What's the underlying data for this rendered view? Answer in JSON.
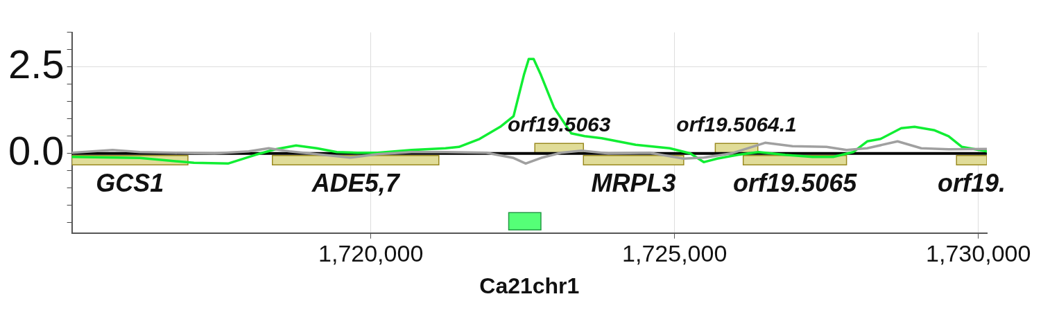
{
  "chart_data": {
    "type": "line",
    "xlabel": "Ca21chr1",
    "xlim": [
      1715080,
      1730140
    ],
    "xticks": [
      {
        "value": 1720000,
        "label": "1,720,000"
      },
      {
        "value": 1725000,
        "label": "1,725,000"
      },
      {
        "value": 1730000,
        "label": "1,730,000"
      }
    ],
    "ylim": [
      -2.3,
      3.5
    ],
    "yticks": [
      {
        "value": -2.0,
        "label": null
      },
      {
        "value": -1.5,
        "label": null
      },
      {
        "value": -1.0,
        "label": null
      },
      {
        "value": -0.5,
        "label": null
      },
      {
        "value": 0,
        "label": "0.0"
      },
      {
        "value": 0.5,
        "label": null
      },
      {
        "value": 1.0,
        "label": null
      },
      {
        "value": 1.5,
        "label": null
      },
      {
        "value": 2.0,
        "label": null
      },
      2.5,
      {
        "value": 3.0,
        "label": null
      },
      {
        "value": 3.5,
        "label": null
      }
    ],
    "grid": true,
    "legend": false,
    "marker": "none",
    "line_style": "solid",
    "series": [
      {
        "color": "#a0a0a0",
        "x": [
          1715080,
          1715750,
          1716200,
          1716760,
          1717430,
          1717990,
          1718320,
          1718660,
          1719220,
          1719660,
          1720110,
          1720670,
          1721230,
          1721900,
          1722350,
          1722550,
          1722800,
          1723130,
          1723470,
          1723910,
          1724590,
          1725150,
          1725480,
          1725930,
          1726490,
          1726940,
          1727500,
          1727830,
          1728170,
          1728670,
          1729060,
          1729510,
          1730140
        ],
        "values": [
          0.02,
          0.1,
          0.04,
          0.02,
          0,
          0.06,
          0.15,
          0.06,
          -0.04,
          -0.12,
          -0.02,
          0.04,
          0.04,
          0.02,
          -0.13,
          -0.29,
          -0.13,
          0.02,
          0.08,
          0,
          0.02,
          -0.15,
          -0.12,
          0,
          0.31,
          0.21,
          0.19,
          0.1,
          0.15,
          0.35,
          0.15,
          0.12,
          0.13
        ]
      },
      {
        "color": "#11ee33",
        "x": [
          1715080,
          1716200,
          1717090,
          1717650,
          1718100,
          1718430,
          1718770,
          1719110,
          1719440,
          1719780,
          1720110,
          1720670,
          1721230,
          1721450,
          1721790,
          1722130,
          1722350,
          1722520,
          1722600,
          1722680,
          1722800,
          1723020,
          1723300,
          1723520,
          1723800,
          1724360,
          1724920,
          1725260,
          1725480,
          1725700,
          1726040,
          1726380,
          1726820,
          1727270,
          1727610,
          1727940,
          1728170,
          1728390,
          1728730,
          1728950,
          1729280,
          1729510,
          1729730,
          1730140
        ],
        "values": [
          -0.1,
          -0.13,
          -0.27,
          -0.29,
          -0.04,
          0.12,
          0.23,
          0.15,
          0.04,
          0.02,
          0.02,
          0.1,
          0.15,
          0.19,
          0.42,
          0.77,
          1.08,
          2.27,
          2.73,
          2.73,
          2.27,
          1.31,
          0.58,
          0.5,
          0.44,
          0.25,
          0.15,
          0,
          -0.25,
          -0.15,
          -0.04,
          0.04,
          -0.04,
          -0.1,
          -0.1,
          0.04,
          0.35,
          0.42,
          0.73,
          0.77,
          0.67,
          0.5,
          0.19,
          0.06
        ]
      }
    ],
    "ref_lines": [
      {
        "axis": "y",
        "value": 0,
        "color": "#000000"
      }
    ],
    "bands": [
      {
        "axis": "x",
        "from": 1715080,
        "to": 1716990,
        "color": "#e0dc98",
        "label": "GCS1"
      },
      {
        "axis": "x",
        "from": 1718380,
        "to": 1721120,
        "color": "#e0dc98",
        "label": "ADE5,7"
      },
      {
        "axis": "x",
        "from": 1723500,
        "to": 1725150,
        "color": "#e0dc98",
        "label": "MRPL3"
      },
      {
        "axis": "x",
        "from": 1726130,
        "to": 1727830,
        "color": "#e0dc98",
        "label": "orf19.5065"
      },
      {
        "axis": "x",
        "from": 1729640,
        "to": 1730140,
        "color": "#e0dc98",
        "label": "orf19."
      },
      {
        "axis": "x",
        "from": 1722700,
        "to": 1723500,
        "color": "#e0dc98",
        "label": "orf19.5063"
      },
      {
        "axis": "x",
        "from": 1725670,
        "to": 1726370,
        "color": "#e0dc98",
        "label": "orf19.5064.1"
      },
      {
        "axis": "x",
        "from": 1722270,
        "to": 1722800,
        "color": "#55ff77"
      }
    ]
  }
}
